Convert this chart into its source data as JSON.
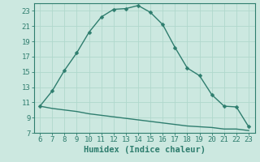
{
  "title": "",
  "xlabel": "Humidex (Indice chaleur)",
  "ylabel": "",
  "background_color": "#cce8e0",
  "grid_color": "#b0d8cc",
  "line_color": "#2e7d6e",
  "xlim": [
    5.5,
    23.5
  ],
  "ylim": [
    7,
    24
  ],
  "xticks": [
    6,
    7,
    8,
    9,
    10,
    11,
    12,
    13,
    14,
    15,
    16,
    17,
    18,
    19,
    20,
    21,
    22,
    23
  ],
  "yticks": [
    7,
    9,
    11,
    13,
    15,
    17,
    19,
    21,
    23
  ],
  "curve1_x": [
    6,
    7,
    8,
    9,
    10,
    11,
    12,
    13,
    14,
    15,
    16,
    17,
    18,
    19,
    20,
    21,
    22,
    23
  ],
  "curve1_y": [
    10.5,
    12.5,
    15.2,
    17.5,
    20.2,
    22.2,
    23.2,
    23.3,
    23.7,
    22.8,
    21.2,
    18.2,
    15.5,
    14.5,
    12.0,
    10.5,
    10.4,
    7.8
  ],
  "curve2_x": [
    6,
    7,
    8,
    9,
    10,
    11,
    12,
    13,
    14,
    15,
    16,
    17,
    18,
    19,
    20,
    21,
    22,
    23
  ],
  "curve2_y": [
    10.5,
    10.2,
    10.0,
    9.8,
    9.5,
    9.3,
    9.1,
    8.9,
    8.7,
    8.5,
    8.3,
    8.1,
    7.9,
    7.8,
    7.7,
    7.5,
    7.5,
    7.3
  ],
  "markersize": 2.5,
  "linewidth": 1.0,
  "font_color": "#2e7d6e",
  "tick_fontsize": 6.5,
  "xlabel_fontsize": 7.5
}
